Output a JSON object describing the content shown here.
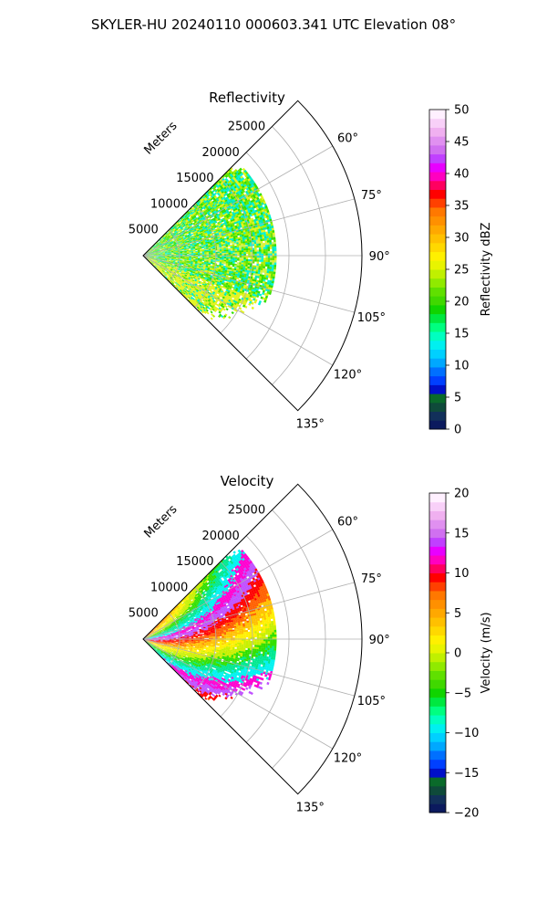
{
  "suptitle": "SKYLER-HU  20240110  000603.341 UTC Elevation 08°",
  "chart_data": [
    {
      "type": "heatmap",
      "projection": "polar-sector",
      "title": "Reflectivity",
      "range_axis_label": "Meters",
      "range_ticks": [
        "5000",
        "10000",
        "15000",
        "20000",
        "25000"
      ],
      "range_tick_values": [
        5000,
        10000,
        15000,
        20000,
        25000
      ],
      "range_max": 30000,
      "azimuth_range_deg": [
        45,
        135
      ],
      "azimuth_ticks": [
        "60°",
        "75°",
        "90°",
        "105°",
        "120°",
        "135°"
      ],
      "azimuth_tick_values": [
        60,
        75,
        90,
        105,
        120,
        135
      ],
      "grid": true,
      "colorbar": {
        "label": "Reflectivity dBZ",
        "range": [
          0,
          50
        ],
        "ticks": [
          "0",
          "5",
          "10",
          "15",
          "20",
          "25",
          "30",
          "35",
          "40",
          "45",
          "50"
        ],
        "tick_values": [
          0,
          5,
          10,
          15,
          20,
          25,
          30,
          35,
          40,
          45,
          50
        ],
        "colors": [
          "#0b1a5e",
          "#12305a",
          "#0f4a3a",
          "#0a6a2a",
          "#0010c8",
          "#0040ff",
          "#0070ff",
          "#00a8ff",
          "#00d0ff",
          "#00f0f0",
          "#00ffc0",
          "#00ff80",
          "#00e840",
          "#10d400",
          "#40d800",
          "#60e000",
          "#90ea00",
          "#c0f000",
          "#e8f400",
          "#fff000",
          "#ffd800",
          "#ffc000",
          "#ffa800",
          "#ff9000",
          "#ff7800",
          "#ff4000",
          "#ff0000",
          "#ff0060",
          "#ff00c0",
          "#e800ff",
          "#c040ff",
          "#d070f0",
          "#e090f0",
          "#f0b0f0",
          "#f8d0f8",
          "#fff0ff"
        ],
        "placement": "right"
      },
      "field_colors": [
        "#30e000",
        "#66e600",
        "#aaf000",
        "#e2f31c",
        "#00e8b0",
        "#00f2d8",
        "#c8f060"
      ]
    },
    {
      "type": "heatmap",
      "projection": "polar-sector",
      "title": "Velocity",
      "range_axis_label": "Meters",
      "range_ticks": [
        "5000",
        "10000",
        "15000",
        "20000",
        "25000"
      ],
      "range_tick_values": [
        5000,
        10000,
        15000,
        20000,
        25000
      ],
      "range_max": 30000,
      "azimuth_range_deg": [
        45,
        135
      ],
      "azimuth_ticks": [
        "60°",
        "75°",
        "90°",
        "105°",
        "120°",
        "135°"
      ],
      "azimuth_tick_values": [
        60,
        75,
        90,
        105,
        120,
        135
      ],
      "grid": true,
      "colorbar": {
        "label": "Velocity (m/s)",
        "range": [
          -20,
          20
        ],
        "ticks": [
          "−20",
          "−15",
          "−10",
          "−5",
          "0",
          "5",
          "10",
          "15",
          "20"
        ],
        "tick_values": [
          -20,
          -15,
          -10,
          -5,
          0,
          5,
          10,
          15,
          20
        ],
        "colors": [
          "#0b1a5e",
          "#12305a",
          "#0f4a3a",
          "#0a6a2a",
          "#0010c8",
          "#0040ff",
          "#0070ff",
          "#00a8ff",
          "#00d0ff",
          "#00f0f0",
          "#00ffc0",
          "#00ff80",
          "#00e840",
          "#10d400",
          "#40d800",
          "#60e000",
          "#90ea00",
          "#c0f000",
          "#e8f400",
          "#fff000",
          "#ffd800",
          "#ffc000",
          "#ffa800",
          "#ff9000",
          "#ff7800",
          "#ff4000",
          "#ff0000",
          "#ff0060",
          "#ff00c0",
          "#e800ff",
          "#c040ff",
          "#d070f0",
          "#e090f0",
          "#f0b0f0",
          "#f8d0f8",
          "#fff0ff"
        ],
        "placement": "right"
      },
      "field_colors": [
        "#ff0000",
        "#ff6000",
        "#ffc000",
        "#fff000",
        "#c8f000",
        "#30e000",
        "#00e890",
        "#00f2f0",
        "#ff00d0",
        "#c050ff"
      ]
    }
  ]
}
